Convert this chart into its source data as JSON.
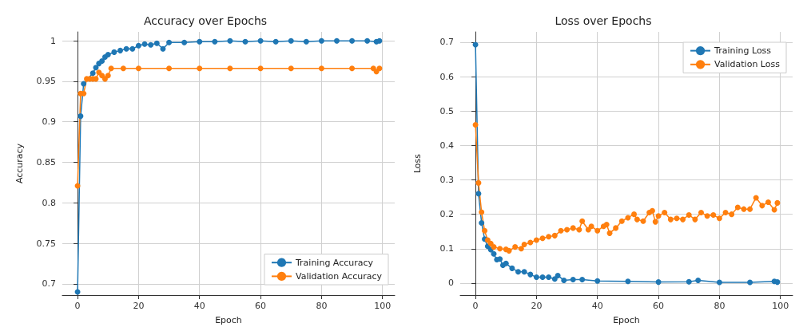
{
  "chart_data": [
    {
      "type": "line",
      "title": "Accuracy over Epochs",
      "xlabel": "Epoch",
      "ylabel": "Accuracy",
      "xlim": [
        -5,
        104
      ],
      "xticks": [
        0,
        20,
        40,
        60,
        80,
        100
      ],
      "ylim": [
        0.686,
        1.011
      ],
      "yticks": [
        0.7,
        0.75,
        0.8,
        0.85,
        0.9,
        0.95,
        1.0
      ],
      "grid": true,
      "legend": "bottom right",
      "marker": "circle",
      "line_style": "solid",
      "series": [
        {
          "name": "Training Accuracy",
          "color": "#1f77b4",
          "x": [
            0,
            1,
            2,
            5,
            6,
            7,
            8,
            9,
            10,
            12,
            14,
            16,
            18,
            20,
            22,
            24,
            26,
            28,
            30,
            35,
            40,
            45,
            50,
            55,
            60,
            65,
            70,
            75,
            80,
            85,
            90,
            95,
            98,
            99
          ],
          "values": [
            0.69,
            0.907,
            0.947,
            0.96,
            0.967,
            0.972,
            0.975,
            0.98,
            0.983,
            0.986,
            0.988,
            0.99,
            0.99,
            0.994,
            0.996,
            0.995,
            0.997,
            0.99,
            0.998,
            0.998,
            0.999,
            0.999,
            1.0,
            0.999,
            1.0,
            0.999,
            1.0,
            0.999,
            1.0,
            1.0,
            1.0,
            1.0,
            0.999,
            1.0
          ]
        },
        {
          "name": "Validation Accuracy",
          "color": "#ff7f0e",
          "x": [
            0,
            1,
            2,
            3,
            4,
            5,
            6,
            7,
            8,
            9,
            10,
            11,
            15,
            20,
            30,
            40,
            50,
            60,
            70,
            80,
            90,
            97,
            98,
            99
          ],
          "values": [
            0.821,
            0.935,
            0.935,
            0.953,
            0.953,
            0.953,
            0.953,
            0.961,
            0.957,
            0.953,
            0.957,
            0.966,
            0.966,
            0.966,
            0.966,
            0.966,
            0.966,
            0.966,
            0.966,
            0.966,
            0.966,
            0.966,
            0.962,
            0.966
          ]
        }
      ]
    },
    {
      "type": "line",
      "title": "Loss over Epochs",
      "xlabel": "Epoch",
      "ylabel": "Loss",
      "xlim": [
        -5,
        104
      ],
      "xticks": [
        0,
        20,
        40,
        60,
        80,
        100
      ],
      "ylim": [
        -0.035,
        0.73
      ],
      "yticks": [
        0.0,
        0.1,
        0.2,
        0.3,
        0.4,
        0.5,
        0.6,
        0.7
      ],
      "grid": true,
      "legend": "top right",
      "marker": "circle",
      "line_style": "solid",
      "series": [
        {
          "name": "Training Loss",
          "color": "#1f77b4",
          "x": [
            0,
            1,
            2,
            3,
            4,
            5,
            6,
            7,
            8,
            9,
            10,
            12,
            14,
            16,
            18,
            20,
            22,
            24,
            26,
            27,
            29,
            32,
            35,
            40,
            50,
            60,
            70,
            73,
            80,
            90,
            98,
            99
          ],
          "values": [
            0.693,
            0.26,
            0.175,
            0.128,
            0.107,
            0.097,
            0.085,
            0.068,
            0.07,
            0.052,
            0.057,
            0.043,
            0.033,
            0.033,
            0.025,
            0.017,
            0.017,
            0.017,
            0.012,
            0.022,
            0.008,
            0.01,
            0.01,
            0.006,
            0.005,
            0.003,
            0.004,
            0.008,
            0.002,
            0.002,
            0.005,
            0.003
          ]
        },
        {
          "name": "Validation Loss",
          "color": "#ff7f0e",
          "x": [
            0,
            1,
            2,
            3,
            4,
            5,
            6,
            8,
            10,
            11,
            13,
            15,
            16,
            18,
            20,
            22,
            24,
            26,
            28,
            30,
            32,
            34,
            35,
            37,
            38,
            40,
            42,
            43,
            44,
            46,
            48,
            50,
            52,
            53,
            55,
            57,
            58,
            59,
            60,
            62,
            64,
            66,
            68,
            70,
            72,
            74,
            76,
            78,
            80,
            82,
            84,
            86,
            88,
            90,
            92,
            94,
            96,
            98,
            99
          ],
          "values": [
            0.46,
            0.291,
            0.206,
            0.152,
            0.125,
            0.115,
            0.105,
            0.1,
            0.098,
            0.094,
            0.105,
            0.1,
            0.112,
            0.118,
            0.125,
            0.13,
            0.135,
            0.138,
            0.152,
            0.155,
            0.16,
            0.155,
            0.18,
            0.155,
            0.165,
            0.152,
            0.165,
            0.17,
            0.145,
            0.16,
            0.18,
            0.19,
            0.2,
            0.185,
            0.18,
            0.205,
            0.21,
            0.178,
            0.195,
            0.205,
            0.185,
            0.188,
            0.185,
            0.198,
            0.185,
            0.205,
            0.195,
            0.198,
            0.188,
            0.205,
            0.2,
            0.22,
            0.215,
            0.215,
            0.248,
            0.225,
            0.235,
            0.213,
            0.233
          ]
        }
      ]
    }
  ]
}
